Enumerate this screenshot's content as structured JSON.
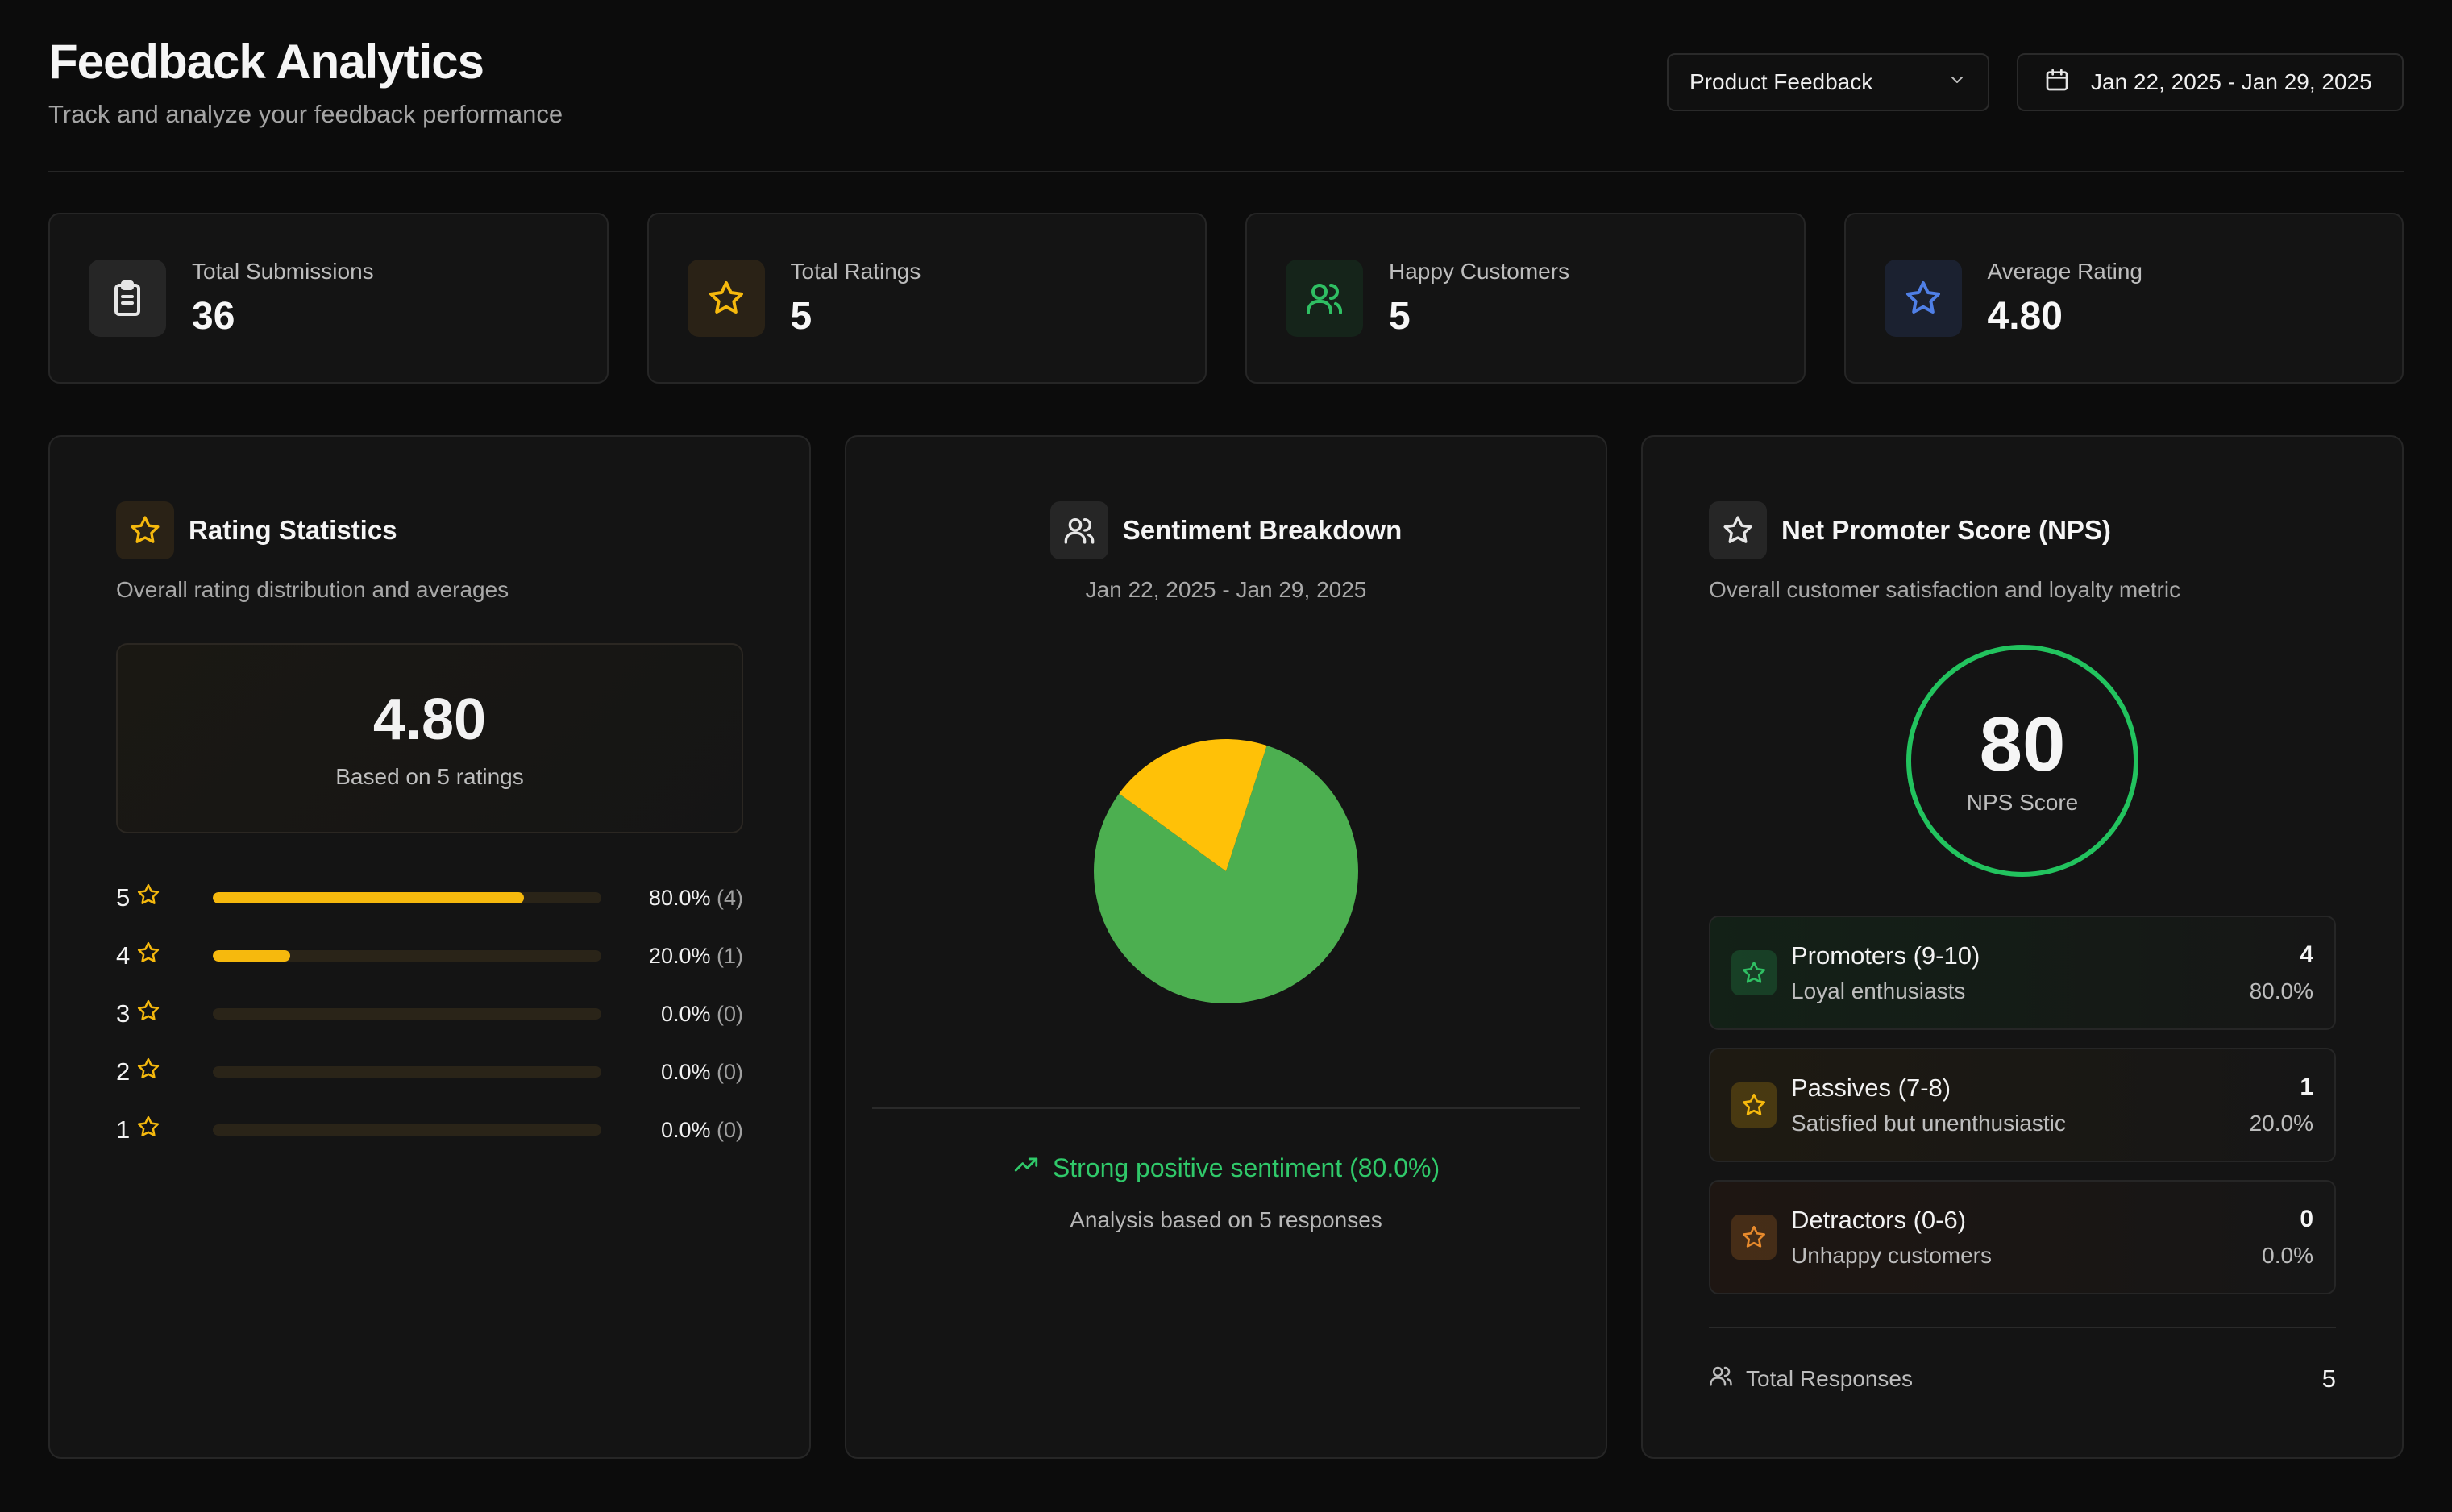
{
  "header": {
    "title": "Feedback Analytics",
    "subtitle": "Track and analyze your feedback performance",
    "form_select": "Product Feedback",
    "date_range": "Jan 22, 2025 - Jan 29, 2025"
  },
  "stats": [
    {
      "label": "Total Submissions",
      "value": "36",
      "icon": "clipboard-icon",
      "color": "#e6e6e6"
    },
    {
      "label": "Total Ratings",
      "value": "5",
      "icon": "star-icon",
      "color": "#f6b90d"
    },
    {
      "label": "Happy Customers",
      "value": "5",
      "icon": "users-icon",
      "color": "#2fbf63"
    },
    {
      "label": "Average Rating",
      "value": "4.80",
      "icon": "star-icon",
      "color": "#4f7fe6"
    }
  ],
  "rating_panel": {
    "title": "Rating Statistics",
    "subtitle": "Overall rating distribution and averages",
    "average": "4.80",
    "based_on": "Based on 5 ratings",
    "distribution": [
      {
        "stars": "5",
        "fraction": 0.8,
        "pct": "80.0%",
        "count": "(4)"
      },
      {
        "stars": "4",
        "fraction": 0.2,
        "pct": "20.0%",
        "count": "(1)"
      },
      {
        "stars": "3",
        "fraction": 0.0,
        "pct": "0.0%",
        "count": "(0)"
      },
      {
        "stars": "2",
        "fraction": 0.0,
        "pct": "0.0%",
        "count": "(0)"
      },
      {
        "stars": "1",
        "fraction": 0.0,
        "pct": "0.0%",
        "count": "(0)"
      }
    ]
  },
  "sentiment_panel": {
    "title": "Sentiment Breakdown",
    "date_range": "Jan 22, 2025 - Jan 29, 2025",
    "slices": [
      {
        "value": 80,
        "color": "#4caf50"
      },
      {
        "value": 20,
        "color": "#ffc107"
      }
    ],
    "summary": "Strong positive sentiment (80.0%)",
    "analysis": "Analysis based on 5 responses"
  },
  "nps_panel": {
    "title": "Net Promoter Score (NPS)",
    "subtitle": "Overall customer satisfaction and loyalty metric",
    "score": "80",
    "score_label": "NPS Score",
    "segments": [
      {
        "title": "Promoters (9-10)",
        "desc": "Loyal enthusiasts",
        "count": "4",
        "pct": "80.0%",
        "color": "#2fbf63",
        "bg": "#132117"
      },
      {
        "title": "Passives (7-8)",
        "desc": "Satisfied but unenthusiastic",
        "count": "1",
        "pct": "20.0%",
        "color": "#f6b90d",
        "bg": "#1e1a12"
      },
      {
        "title": "Detractors (0-6)",
        "desc": "Unhappy customers",
        "count": "0",
        "pct": "0.0%",
        "color": "#e88a2c",
        "bg": "#1e1612"
      }
    ],
    "total_label": "Total Responses",
    "total_value": "5"
  }
}
